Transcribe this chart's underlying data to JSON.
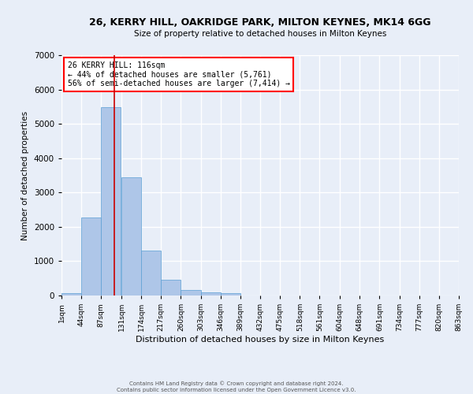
{
  "title_line1": "26, KERRY HILL, OAKRIDGE PARK, MILTON KEYNES, MK14 6GG",
  "title_line2": "Size of property relative to detached houses in Milton Keynes",
  "xlabel": "Distribution of detached houses by size in Milton Keynes",
  "ylabel": "Number of detached properties",
  "bar_values": [
    75,
    2280,
    5480,
    3450,
    1310,
    470,
    155,
    95,
    60,
    0,
    0,
    0,
    0,
    0,
    0,
    0,
    0,
    0,
    0,
    0
  ],
  "bin_edges": [
    1,
    44,
    87,
    131,
    174,
    217,
    260,
    303,
    346,
    389,
    432,
    475,
    518,
    561,
    604,
    648,
    691,
    734,
    777,
    820,
    863
  ],
  "tick_labels": [
    "1sqm",
    "44sqm",
    "87sqm",
    "131sqm",
    "174sqm",
    "217sqm",
    "260sqm",
    "303sqm",
    "346sqm",
    "389sqm",
    "432sqm",
    "475sqm",
    "518sqm",
    "561sqm",
    "604sqm",
    "648sqm",
    "691sqm",
    "734sqm",
    "777sqm",
    "820sqm",
    "863sqm"
  ],
  "bar_color": "#aec6e8",
  "bar_edge_color": "#5a9fd4",
  "background_color": "#e8eef8",
  "fig_background_color": "#e8eef8",
  "grid_color": "#ffffff",
  "vline_x": 116,
  "vline_color": "#cc0000",
  "ylim": [
    0,
    7000
  ],
  "yticks": [
    0,
    1000,
    2000,
    3000,
    4000,
    5000,
    6000,
    7000
  ],
  "annotation_text": "26 KERRY HILL: 116sqm\n← 44% of detached houses are smaller (5,761)\n56% of semi-detached houses are larger (7,414) →",
  "footer_line1": "Contains HM Land Registry data © Crown copyright and database right 2024.",
  "footer_line2": "Contains public sector information licensed under the Open Government Licence v3.0."
}
